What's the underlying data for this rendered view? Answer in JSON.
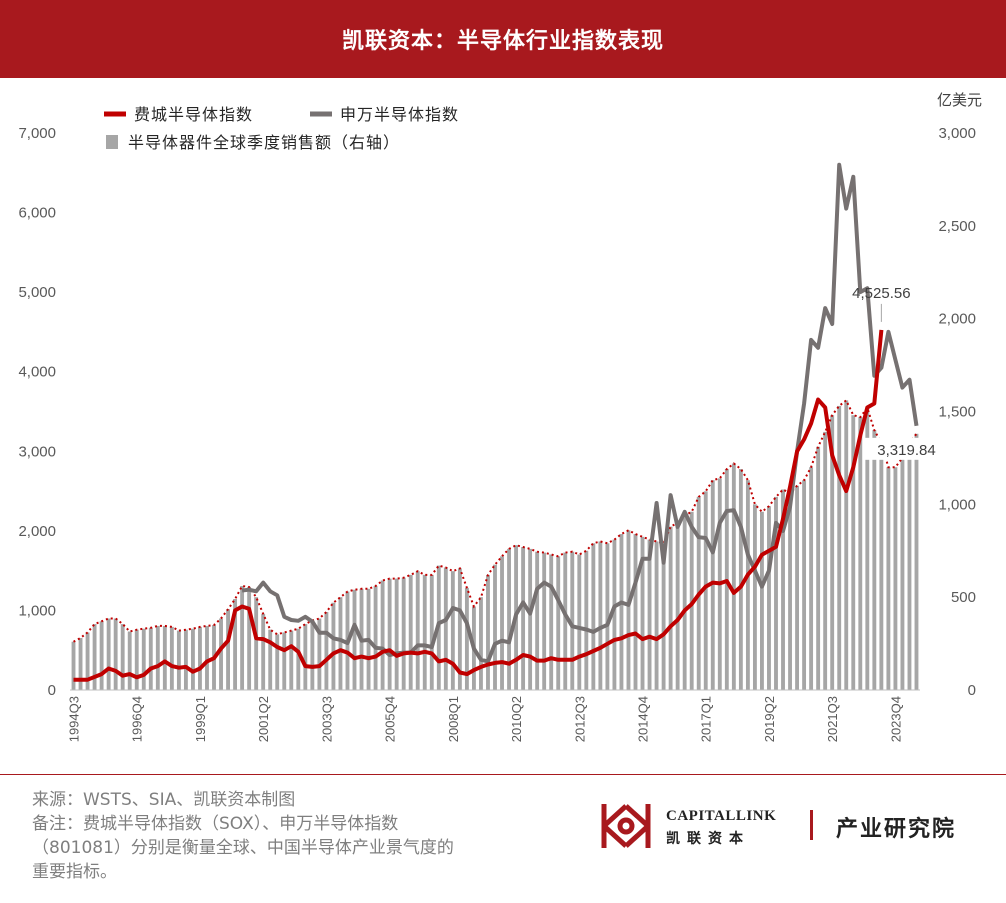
{
  "header": {
    "title": "凯联资本：半导体行业指数表现"
  },
  "chart_data": {
    "type": "line",
    "title": "",
    "legend": [
      {
        "name": "费城半导体指数",
        "color": "#c00000",
        "kind": "line"
      },
      {
        "name": "申万半导体指数",
        "color": "#767171",
        "kind": "line"
      },
      {
        "name": "半导体器件全球季度销售额（右轴）",
        "color": "#a6a6a6",
        "kind": "bar"
      }
    ],
    "legend_position": "top-left",
    "left_axis": {
      "ticks": [
        "7,000",
        "6,000",
        "5,000",
        "4,000",
        "3,000",
        "2,000",
        "1,000",
        "0"
      ],
      "ylim": [
        0,
        7000
      ]
    },
    "right_axis": {
      "unit": "亿美元",
      "ticks": [
        "3,000",
        "2,500",
        "2,000",
        "1,500",
        "1,000",
        "500",
        "0"
      ],
      "ylim": [
        0,
        3000
      ]
    },
    "x_tick_labels": [
      "1994Q3",
      "1996Q4",
      "1999Q1",
      "2001Q2",
      "2003Q3",
      "2005Q4",
      "2008Q1",
      "2010Q2",
      "2012Q3",
      "2014Q4",
      "2017Q1",
      "2019Q2",
      "2021Q3",
      "2023Q4"
    ],
    "annotations": [
      {
        "text": "4,525.56",
        "series": "费城半导体指数"
      },
      {
        "text": "3,319.84",
        "series": "申万半导体指数"
      }
    ],
    "sox": [
      {
        "x": 0,
        "y": 130
      },
      {
        "x": 2,
        "y": 130
      },
      {
        "x": 4,
        "y": 200
      },
      {
        "x": 5,
        "y": 270
      },
      {
        "x": 6,
        "y": 240
      },
      {
        "x": 7,
        "y": 180
      },
      {
        "x": 8,
        "y": 200
      },
      {
        "x": 9,
        "y": 160
      },
      {
        "x": 10,
        "y": 190
      },
      {
        "x": 11,
        "y": 270
      },
      {
        "x": 12,
        "y": 300
      },
      {
        "x": 13,
        "y": 360
      },
      {
        "x": 14,
        "y": 300
      },
      {
        "x": 15,
        "y": 280
      },
      {
        "x": 16,
        "y": 290
      },
      {
        "x": 17,
        "y": 230
      },
      {
        "x": 18,
        "y": 270
      },
      {
        "x": 19,
        "y": 360
      },
      {
        "x": 20,
        "y": 400
      },
      {
        "x": 21,
        "y": 520
      },
      {
        "x": 22,
        "y": 620
      },
      {
        "x": 23,
        "y": 1000
      },
      {
        "x": 24,
        "y": 1050
      },
      {
        "x": 25,
        "y": 1020
      },
      {
        "x": 26,
        "y": 650
      },
      {
        "x": 27,
        "y": 640
      },
      {
        "x": 28,
        "y": 600
      },
      {
        "x": 29,
        "y": 540
      },
      {
        "x": 30,
        "y": 500
      },
      {
        "x": 31,
        "y": 550
      },
      {
        "x": 32,
        "y": 480
      },
      {
        "x": 33,
        "y": 300
      },
      {
        "x": 34,
        "y": 290
      },
      {
        "x": 35,
        "y": 300
      },
      {
        "x": 36,
        "y": 380
      },
      {
        "x": 37,
        "y": 460
      },
      {
        "x": 38,
        "y": 500
      },
      {
        "x": 39,
        "y": 470
      },
      {
        "x": 40,
        "y": 400
      },
      {
        "x": 41,
        "y": 420
      },
      {
        "x": 42,
        "y": 400
      },
      {
        "x": 43,
        "y": 420
      },
      {
        "x": 44,
        "y": 480
      },
      {
        "x": 45,
        "y": 500
      },
      {
        "x": 46,
        "y": 430
      },
      {
        "x": 47,
        "y": 460
      },
      {
        "x": 48,
        "y": 470
      },
      {
        "x": 49,
        "y": 460
      },
      {
        "x": 50,
        "y": 480
      },
      {
        "x": 51,
        "y": 460
      },
      {
        "x": 52,
        "y": 360
      },
      {
        "x": 53,
        "y": 380
      },
      {
        "x": 54,
        "y": 330
      },
      {
        "x": 55,
        "y": 220
      },
      {
        "x": 56,
        "y": 200
      },
      {
        "x": 57,
        "y": 250
      },
      {
        "x": 58,
        "y": 290
      },
      {
        "x": 59,
        "y": 320
      },
      {
        "x": 60,
        "y": 340
      },
      {
        "x": 61,
        "y": 350
      },
      {
        "x": 62,
        "y": 330
      },
      {
        "x": 63,
        "y": 380
      },
      {
        "x": 64,
        "y": 440
      },
      {
        "x": 65,
        "y": 420
      },
      {
        "x": 66,
        "y": 370
      },
      {
        "x": 67,
        "y": 370
      },
      {
        "x": 68,
        "y": 400
      },
      {
        "x": 69,
        "y": 380
      },
      {
        "x": 70,
        "y": 380
      },
      {
        "x": 71,
        "y": 380
      },
      {
        "x": 72,
        "y": 420
      },
      {
        "x": 73,
        "y": 450
      },
      {
        "x": 74,
        "y": 490
      },
      {
        "x": 75,
        "y": 530
      },
      {
        "x": 76,
        "y": 580
      },
      {
        "x": 77,
        "y": 630
      },
      {
        "x": 78,
        "y": 650
      },
      {
        "x": 79,
        "y": 690
      },
      {
        "x": 80,
        "y": 710
      },
      {
        "x": 81,
        "y": 640
      },
      {
        "x": 82,
        "y": 670
      },
      {
        "x": 83,
        "y": 640
      },
      {
        "x": 84,
        "y": 700
      },
      {
        "x": 85,
        "y": 800
      },
      {
        "x": 86,
        "y": 880
      },
      {
        "x": 87,
        "y": 1000
      },
      {
        "x": 88,
        "y": 1080
      },
      {
        "x": 89,
        "y": 1200
      },
      {
        "x": 90,
        "y": 1300
      },
      {
        "x": 91,
        "y": 1350
      },
      {
        "x": 92,
        "y": 1340
      },
      {
        "x": 93,
        "y": 1370
      },
      {
        "x": 94,
        "y": 1220
      },
      {
        "x": 95,
        "y": 1300
      },
      {
        "x": 96,
        "y": 1450
      },
      {
        "x": 97,
        "y": 1550
      },
      {
        "x": 98,
        "y": 1700
      },
      {
        "x": 99,
        "y": 1750
      },
      {
        "x": 100,
        "y": 1800
      },
      {
        "x": 101,
        "y": 2150
      },
      {
        "x": 102,
        "y": 2550
      },
      {
        "x": 103,
        "y": 3000
      },
      {
        "x": 104,
        "y": 3150
      },
      {
        "x": 105,
        "y": 3350
      },
      {
        "x": 106,
        "y": 3650
      },
      {
        "x": 107,
        "y": 3550
      },
      {
        "x": 108,
        "y": 2950
      },
      {
        "x": 109,
        "y": 2700
      },
      {
        "x": 110,
        "y": 2500
      },
      {
        "x": 111,
        "y": 2800
      },
      {
        "x": 112,
        "y": 3200
      },
      {
        "x": 113,
        "y": 3550
      },
      {
        "x": 114,
        "y": 3600
      },
      {
        "x": 115,
        "y": 4525.56
      }
    ],
    "sw": [
      {
        "x": 24,
        "y": 1250
      },
      {
        "x": 25,
        "y": 1260
      },
      {
        "x": 26,
        "y": 1240
      },
      {
        "x": 27,
        "y": 1350
      },
      {
        "x": 28,
        "y": 1240
      },
      {
        "x": 29,
        "y": 1190
      },
      {
        "x": 30,
        "y": 920
      },
      {
        "x": 31,
        "y": 880
      },
      {
        "x": 32,
        "y": 870
      },
      {
        "x": 33,
        "y": 920
      },
      {
        "x": 34,
        "y": 860
      },
      {
        "x": 35,
        "y": 720
      },
      {
        "x": 36,
        "y": 720
      },
      {
        "x": 37,
        "y": 650
      },
      {
        "x": 38,
        "y": 630
      },
      {
        "x": 39,
        "y": 590
      },
      {
        "x": 40,
        "y": 820
      },
      {
        "x": 41,
        "y": 620
      },
      {
        "x": 42,
        "y": 630
      },
      {
        "x": 43,
        "y": 530
      },
      {
        "x": 44,
        "y": 520
      },
      {
        "x": 45,
        "y": 440
      },
      {
        "x": 46,
        "y": 460
      },
      {
        "x": 47,
        "y": 470
      },
      {
        "x": 48,
        "y": 470
      },
      {
        "x": 49,
        "y": 560
      },
      {
        "x": 50,
        "y": 560
      },
      {
        "x": 51,
        "y": 540
      },
      {
        "x": 52,
        "y": 840
      },
      {
        "x": 53,
        "y": 880
      },
      {
        "x": 54,
        "y": 1030
      },
      {
        "x": 55,
        "y": 1000
      },
      {
        "x": 56,
        "y": 840
      },
      {
        "x": 57,
        "y": 520
      },
      {
        "x": 58,
        "y": 380
      },
      {
        "x": 59,
        "y": 360
      },
      {
        "x": 60,
        "y": 580
      },
      {
        "x": 61,
        "y": 620
      },
      {
        "x": 62,
        "y": 600
      },
      {
        "x": 63,
        "y": 950
      },
      {
        "x": 64,
        "y": 1100
      },
      {
        "x": 65,
        "y": 960
      },
      {
        "x": 66,
        "y": 1270
      },
      {
        "x": 67,
        "y": 1350
      },
      {
        "x": 68,
        "y": 1300
      },
      {
        "x": 69,
        "y": 1130
      },
      {
        "x": 70,
        "y": 950
      },
      {
        "x": 71,
        "y": 800
      },
      {
        "x": 72,
        "y": 780
      },
      {
        "x": 73,
        "y": 760
      },
      {
        "x": 74,
        "y": 730
      },
      {
        "x": 75,
        "y": 780
      },
      {
        "x": 76,
        "y": 820
      },
      {
        "x": 77,
        "y": 1050
      },
      {
        "x": 78,
        "y": 1100
      },
      {
        "x": 79,
        "y": 1070
      },
      {
        "x": 80,
        "y": 1350
      },
      {
        "x": 81,
        "y": 1650
      },
      {
        "x": 82,
        "y": 1650
      },
      {
        "x": 83,
        "y": 2350
      },
      {
        "x": 84,
        "y": 1600
      },
      {
        "x": 85,
        "y": 2450
      },
      {
        "x": 86,
        "y": 2050
      },
      {
        "x": 87,
        "y": 2240
      },
      {
        "x": 88,
        "y": 2050
      },
      {
        "x": 89,
        "y": 1920
      },
      {
        "x": 90,
        "y": 1910
      },
      {
        "x": 91,
        "y": 1730
      },
      {
        "x": 92,
        "y": 2100
      },
      {
        "x": 93,
        "y": 2250
      },
      {
        "x": 94,
        "y": 2260
      },
      {
        "x": 95,
        "y": 2050
      },
      {
        "x": 96,
        "y": 1700
      },
      {
        "x": 97,
        "y": 1500
      },
      {
        "x": 98,
        "y": 1300
      },
      {
        "x": 99,
        "y": 1500
      },
      {
        "x": 100,
        "y": 2100
      },
      {
        "x": 101,
        "y": 2000
      },
      {
        "x": 102,
        "y": 2300
      },
      {
        "x": 103,
        "y": 3000
      },
      {
        "x": 104,
        "y": 3600
      },
      {
        "x": 105,
        "y": 4400
      },
      {
        "x": 106,
        "y": 4300
      },
      {
        "x": 107,
        "y": 4800
      },
      {
        "x": 108,
        "y": 4600
      },
      {
        "x": 109,
        "y": 6600
      },
      {
        "x": 110,
        "y": 6050
      },
      {
        "x": 111,
        "y": 6450
      },
      {
        "x": 112,
        "y": 5000
      },
      {
        "x": 113,
        "y": 5050
      },
      {
        "x": 114,
        "y": 3950
      },
      {
        "x": 115,
        "y": 4050
      },
      {
        "x": 116,
        "y": 4500
      },
      {
        "x": 117,
        "y": 4150
      },
      {
        "x": 118,
        "y": 3800
      },
      {
        "x": 119,
        "y": 3900
      },
      {
        "x": 120,
        "y": 3319.84
      }
    ],
    "sales_bars": [
      {
        "x": 0,
        "y": 260
      },
      {
        "x": 1,
        "y": 280
      },
      {
        "x": 2,
        "y": 310
      },
      {
        "x": 3,
        "y": 355
      },
      {
        "x": 4,
        "y": 370
      },
      {
        "x": 5,
        "y": 385
      },
      {
        "x": 6,
        "y": 385
      },
      {
        "x": 7,
        "y": 355
      },
      {
        "x": 8,
        "y": 315
      },
      {
        "x": 9,
        "y": 325
      },
      {
        "x": 10,
        "y": 330
      },
      {
        "x": 11,
        "y": 335
      },
      {
        "x": 12,
        "y": 345
      },
      {
        "x": 13,
        "y": 345
      },
      {
        "x": 14,
        "y": 340
      },
      {
        "x": 15,
        "y": 320
      },
      {
        "x": 16,
        "y": 325
      },
      {
        "x": 17,
        "y": 330
      },
      {
        "x": 18,
        "y": 340
      },
      {
        "x": 19,
        "y": 345
      },
      {
        "x": 20,
        "y": 350
      },
      {
        "x": 21,
        "y": 385
      },
      {
        "x": 22,
        "y": 435
      },
      {
        "x": 23,
        "y": 490
      },
      {
        "x": 24,
        "y": 560
      },
      {
        "x": 25,
        "y": 555
      },
      {
        "x": 26,
        "y": 500
      },
      {
        "x": 27,
        "y": 410
      },
      {
        "x": 28,
        "y": 325
      },
      {
        "x": 29,
        "y": 300
      },
      {
        "x": 30,
        "y": 310
      },
      {
        "x": 31,
        "y": 320
      },
      {
        "x": 32,
        "y": 330
      },
      {
        "x": 33,
        "y": 355
      },
      {
        "x": 34,
        "y": 375
      },
      {
        "x": 35,
        "y": 385
      },
      {
        "x": 36,
        "y": 420
      },
      {
        "x": 37,
        "y": 470
      },
      {
        "x": 38,
        "y": 500
      },
      {
        "x": 39,
        "y": 530
      },
      {
        "x": 40,
        "y": 540
      },
      {
        "x": 41,
        "y": 545
      },
      {
        "x": 42,
        "y": 545
      },
      {
        "x": 43,
        "y": 560
      },
      {
        "x": 44,
        "y": 590
      },
      {
        "x": 45,
        "y": 600
      },
      {
        "x": 46,
        "y": 600
      },
      {
        "x": 47,
        "y": 605
      },
      {
        "x": 48,
        "y": 620
      },
      {
        "x": 49,
        "y": 640
      },
      {
        "x": 50,
        "y": 620
      },
      {
        "x": 51,
        "y": 620
      },
      {
        "x": 52,
        "y": 670
      },
      {
        "x": 53,
        "y": 660
      },
      {
        "x": 54,
        "y": 640
      },
      {
        "x": 55,
        "y": 655
      },
      {
        "x": 56,
        "y": 550
      },
      {
        "x": 57,
        "y": 450
      },
      {
        "x": 58,
        "y": 500
      },
      {
        "x": 59,
        "y": 620
      },
      {
        "x": 60,
        "y": 675
      },
      {
        "x": 61,
        "y": 720
      },
      {
        "x": 62,
        "y": 760
      },
      {
        "x": 63,
        "y": 780
      },
      {
        "x": 64,
        "y": 770
      },
      {
        "x": 65,
        "y": 760
      },
      {
        "x": 66,
        "y": 745
      },
      {
        "x": 67,
        "y": 740
      },
      {
        "x": 68,
        "y": 730
      },
      {
        "x": 69,
        "y": 720
      },
      {
        "x": 70,
        "y": 740
      },
      {
        "x": 71,
        "y": 745
      },
      {
        "x": 72,
        "y": 730
      },
      {
        "x": 73,
        "y": 750
      },
      {
        "x": 74,
        "y": 790
      },
      {
        "x": 75,
        "y": 800
      },
      {
        "x": 76,
        "y": 790
      },
      {
        "x": 77,
        "y": 810
      },
      {
        "x": 78,
        "y": 840
      },
      {
        "x": 79,
        "y": 860
      },
      {
        "x": 80,
        "y": 840
      },
      {
        "x": 81,
        "y": 825
      },
      {
        "x": 82,
        "y": 810
      },
      {
        "x": 83,
        "y": 800
      },
      {
        "x": 84,
        "y": 790
      },
      {
        "x": 85,
        "y": 880
      },
      {
        "x": 86,
        "y": 900
      },
      {
        "x": 87,
        "y": 940
      },
      {
        "x": 88,
        "y": 960
      },
      {
        "x": 89,
        "y": 1040
      },
      {
        "x": 90,
        "y": 1070
      },
      {
        "x": 91,
        "y": 1130
      },
      {
        "x": 92,
        "y": 1140
      },
      {
        "x": 93,
        "y": 1190
      },
      {
        "x": 94,
        "y": 1220
      },
      {
        "x": 95,
        "y": 1190
      },
      {
        "x": 96,
        "y": 1130
      },
      {
        "x": 97,
        "y": 1000
      },
      {
        "x": 98,
        "y": 960
      },
      {
        "x": 99,
        "y": 990
      },
      {
        "x": 100,
        "y": 1040
      },
      {
        "x": 101,
        "y": 1080
      },
      {
        "x": 102,
        "y": 1060
      },
      {
        "x": 103,
        "y": 1100
      },
      {
        "x": 104,
        "y": 1130
      },
      {
        "x": 105,
        "y": 1200
      },
      {
        "x": 106,
        "y": 1310
      },
      {
        "x": 107,
        "y": 1390
      },
      {
        "x": 108,
        "y": 1480
      },
      {
        "x": 109,
        "y": 1530
      },
      {
        "x": 110,
        "y": 1560
      },
      {
        "x": 111,
        "y": 1480
      },
      {
        "x": 112,
        "y": 1470
      },
      {
        "x": 113,
        "y": 1520
      },
      {
        "x": 114,
        "y": 1400
      },
      {
        "x": 115,
        "y": 1330
      },
      {
        "x": 116,
        "y": 1200
      },
      {
        "x": 117,
        "y": 1200
      },
      {
        "x": 118,
        "y": 1250
      },
      {
        "x": 119,
        "y": 1330
      },
      {
        "x": 120,
        "y": 1380
      }
    ]
  },
  "footer": {
    "source": "来源：WSTS、SIA、凯联资本制图",
    "note_lines": [
      "备注：费城半导体指数（SOX）、申万半导体指数",
      "（801081）分别是衡量全球、中国半导体产业景气度的",
      "重要指标。"
    ]
  },
  "logo": {
    "brand_en": "CAPITALLINK",
    "brand_cn": "凯联资本",
    "dept": "产业研究院",
    "brand_color": "#a8191e"
  }
}
